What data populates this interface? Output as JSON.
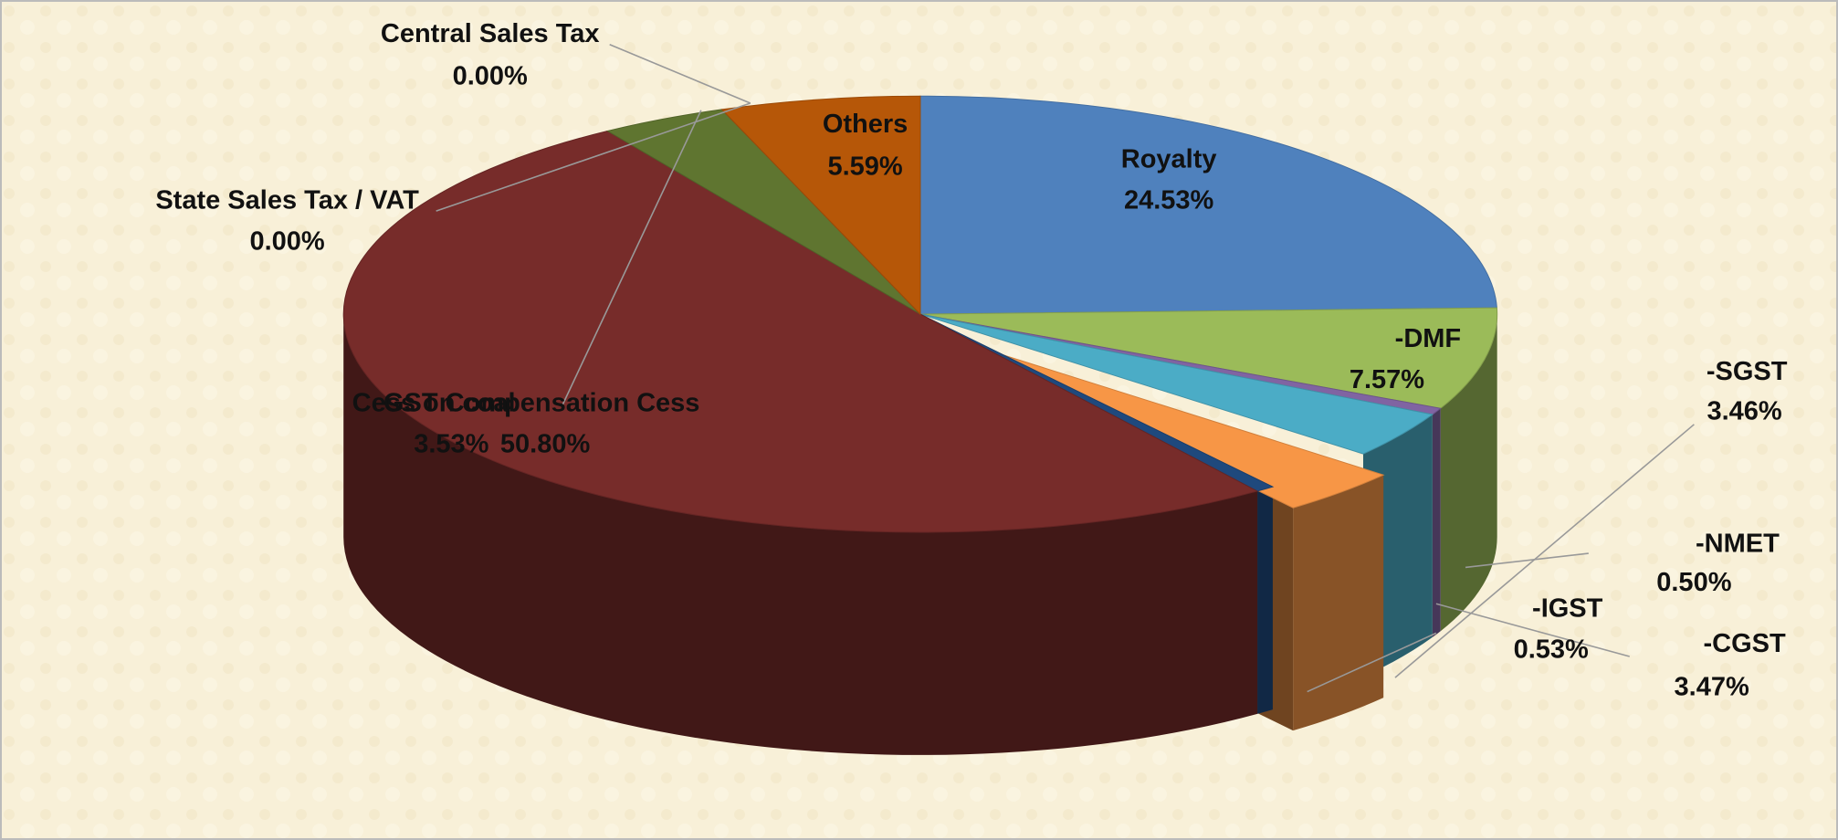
{
  "chart_data": {
    "type": "pie",
    "categories": [
      "Royalty",
      "-DMF",
      "-NMET",
      "-SGST",
      "-CGST",
      "-IGST",
      "GST Compensation Cess",
      "Cess on coal",
      "State Sales Tax / VAT",
      "Central Sales Tax",
      "Others"
    ],
    "values": [
      24.53,
      7.57,
      0.5,
      3.46,
      3.47,
      0.53,
      50.8,
      3.53,
      0,
      0,
      5.59
    ],
    "value_labels": [
      "24.53%",
      "7.57%",
      "0.50%",
      "3.46%",
      "3.47%",
      "0.53%",
      "50.80%",
      "3.53%",
      "0.00%",
      "0.00%",
      "5.59%"
    ],
    "colors": [
      "#4f81bd",
      "#9bbb59",
      "#8064a2",
      "#4bacc6",
      "#f79646",
      "#1f497d",
      "#772c2a",
      "#5f7530",
      "#7f6000",
      "#c0504d",
      "#b65708"
    ],
    "exploded": [
      "-CGST"
    ]
  }
}
